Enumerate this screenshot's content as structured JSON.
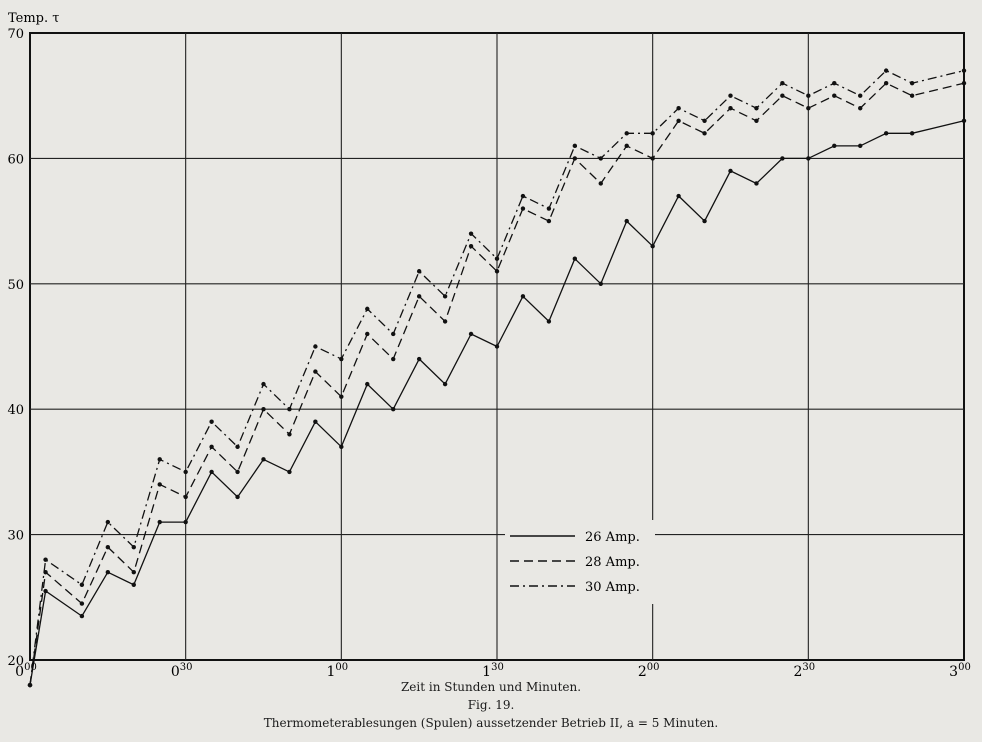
{
  "chart_data": {
    "type": "line",
    "title": "",
    "ylabel": "Temp. τ",
    "xlabel": "Zeit in Stunden und Minuten.",
    "xlim": [
      0,
      180
    ],
    "ylim": [
      20,
      70
    ],
    "x_ticks": [
      {
        "v": 0,
        "main": "0",
        "sup": "00"
      },
      {
        "v": 30,
        "main": "0",
        "sup": "30"
      },
      {
        "v": 60,
        "main": "1",
        "sup": "00"
      },
      {
        "v": 90,
        "main": "1",
        "sup": "30"
      },
      {
        "v": 120,
        "main": "2",
        "sup": "00"
      },
      {
        "v": 150,
        "main": "2",
        "sup": "30"
      },
      {
        "v": 180,
        "main": "3",
        "sup": "00"
      }
    ],
    "y_ticks": [
      20,
      30,
      40,
      50,
      60,
      70
    ],
    "grid": true,
    "legend_position": "right-center",
    "series": [
      {
        "name": "26 Amp.",
        "dash": "solid",
        "points": [
          [
            0,
            18
          ],
          [
            3,
            25.5
          ],
          [
            10,
            23.5
          ],
          [
            15,
            27
          ],
          [
            20,
            26
          ],
          [
            25,
            31
          ],
          [
            30,
            31
          ],
          [
            35,
            35
          ],
          [
            40,
            33
          ],
          [
            45,
            36
          ],
          [
            50,
            35
          ],
          [
            55,
            39
          ],
          [
            60,
            37
          ],
          [
            65,
            42
          ],
          [
            70,
            40
          ],
          [
            75,
            44
          ],
          [
            80,
            42
          ],
          [
            85,
            46
          ],
          [
            90,
            45
          ],
          [
            95,
            49
          ],
          [
            100,
            47
          ],
          [
            105,
            52
          ],
          [
            110,
            50
          ],
          [
            115,
            55
          ],
          [
            120,
            53
          ],
          [
            125,
            57
          ],
          [
            130,
            55
          ],
          [
            135,
            59
          ],
          [
            140,
            58
          ],
          [
            145,
            60
          ],
          [
            150,
            60
          ],
          [
            155,
            61
          ],
          [
            160,
            61
          ],
          [
            165,
            62
          ],
          [
            170,
            62
          ],
          [
            180,
            63
          ]
        ]
      },
      {
        "name": "28 Amp.",
        "dash": "dashed",
        "points": [
          [
            0,
            18
          ],
          [
            3,
            27
          ],
          [
            10,
            24.5
          ],
          [
            15,
            29
          ],
          [
            20,
            27
          ],
          [
            25,
            34
          ],
          [
            30,
            33
          ],
          [
            35,
            37
          ],
          [
            40,
            35
          ],
          [
            45,
            40
          ],
          [
            50,
            38
          ],
          [
            55,
            43
          ],
          [
            60,
            41
          ],
          [
            65,
            46
          ],
          [
            70,
            44
          ],
          [
            75,
            49
          ],
          [
            80,
            47
          ],
          [
            85,
            53
          ],
          [
            90,
            51
          ],
          [
            95,
            56
          ],
          [
            100,
            55
          ],
          [
            105,
            60
          ],
          [
            110,
            58
          ],
          [
            115,
            61
          ],
          [
            120,
            60
          ],
          [
            125,
            63
          ],
          [
            130,
            62
          ],
          [
            135,
            64
          ],
          [
            140,
            63
          ],
          [
            145,
            65
          ],
          [
            150,
            64
          ],
          [
            155,
            65
          ],
          [
            160,
            64
          ],
          [
            165,
            66
          ],
          [
            170,
            65
          ],
          [
            180,
            66
          ]
        ]
      },
      {
        "name": "30 Amp.",
        "dash": "dashdot",
        "points": [
          [
            0,
            18
          ],
          [
            3,
            28
          ],
          [
            10,
            26
          ],
          [
            15,
            31
          ],
          [
            20,
            29
          ],
          [
            25,
            36
          ],
          [
            30,
            35
          ],
          [
            35,
            39
          ],
          [
            40,
            37
          ],
          [
            45,
            42
          ],
          [
            50,
            40
          ],
          [
            55,
            45
          ],
          [
            60,
            44
          ],
          [
            65,
            48
          ],
          [
            70,
            46
          ],
          [
            75,
            51
          ],
          [
            80,
            49
          ],
          [
            85,
            54
          ],
          [
            90,
            52
          ],
          [
            95,
            57
          ],
          [
            100,
            56
          ],
          [
            105,
            61
          ],
          [
            110,
            60
          ],
          [
            115,
            62
          ],
          [
            120,
            62
          ],
          [
            125,
            64
          ],
          [
            130,
            63
          ],
          [
            135,
            65
          ],
          [
            140,
            64
          ],
          [
            145,
            66
          ],
          [
            150,
            65
          ],
          [
            155,
            66
          ],
          [
            160,
            65
          ],
          [
            165,
            67
          ],
          [
            170,
            66
          ],
          [
            180,
            67
          ]
        ]
      }
    ]
  },
  "caption": {
    "fig": "Fig. 19.",
    "text": "Thermometerablesungen (Spulen) aussetzender Betrieb II, a = 5 Minuten."
  }
}
